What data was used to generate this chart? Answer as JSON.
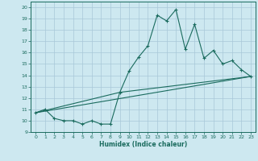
{
  "title": "",
  "xlabel": "Humidex (Indice chaleur)",
  "ylabel": "",
  "xlim": [
    -0.5,
    23.5
  ],
  "ylim": [
    9,
    20.5
  ],
  "yticks": [
    9,
    10,
    11,
    12,
    13,
    14,
    15,
    16,
    17,
    18,
    19,
    20
  ],
  "xticks": [
    0,
    1,
    2,
    3,
    4,
    5,
    6,
    7,
    8,
    9,
    10,
    11,
    12,
    13,
    14,
    15,
    16,
    17,
    18,
    19,
    20,
    21,
    22,
    23
  ],
  "background_color": "#cde8f0",
  "grid_color": "#a8c8d8",
  "line_color": "#1a6b5e",
  "series": [
    [
      0,
      10.7
    ],
    [
      1,
      11.0
    ],
    [
      2,
      10.2
    ],
    [
      3,
      10.0
    ],
    [
      4,
      10.0
    ],
    [
      5,
      9.7
    ],
    [
      6,
      10.0
    ],
    [
      7,
      9.7
    ],
    [
      8,
      9.7
    ],
    [
      9,
      12.5
    ],
    [
      10,
      14.4
    ],
    [
      11,
      15.6
    ],
    [
      12,
      16.6
    ],
    [
      13,
      19.3
    ],
    [
      14,
      18.8
    ],
    [
      15,
      19.8
    ],
    [
      16,
      16.3
    ],
    [
      17,
      18.5
    ],
    [
      18,
      15.5
    ],
    [
      19,
      16.2
    ],
    [
      20,
      15.0
    ],
    [
      21,
      15.3
    ],
    [
      22,
      14.5
    ],
    [
      23,
      13.9
    ]
  ],
  "line2": [
    [
      0,
      10.7
    ],
    [
      23,
      13.9
    ]
  ],
  "line3": [
    [
      0,
      10.7
    ],
    [
      9,
      12.5
    ],
    [
      23,
      13.9
    ]
  ]
}
